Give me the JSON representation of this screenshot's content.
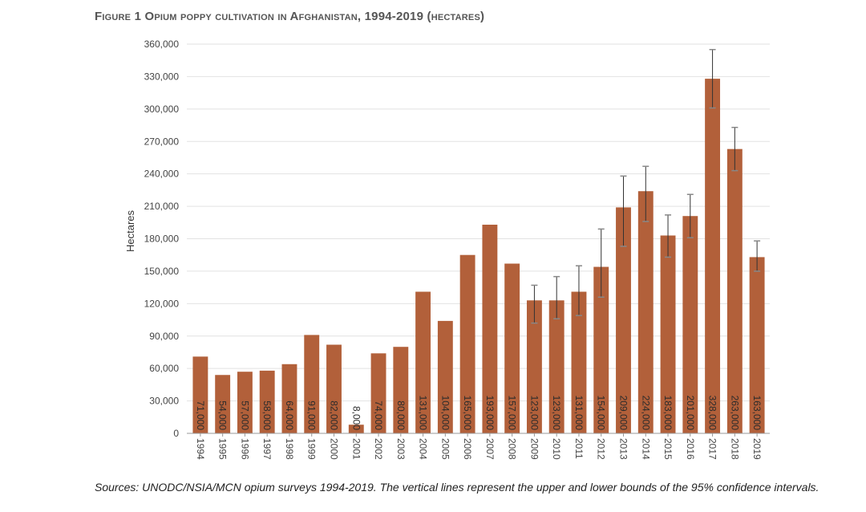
{
  "figure": {
    "title": "Figure 1 Opium poppy cultivation in Afghanistan, 1994-2019 (hectares)",
    "source": "Sources: UNODC/NSIA/MCN opium surveys 1994-2019. The vertical lines represent the upper and lower bounds of the 95% confidence intervals."
  },
  "colors": {
    "bar": "#b2603a",
    "bar_label": "#2b2b2b",
    "grid": "#e2e2e2",
    "error_bar": "#333333",
    "axis_text": "#444444"
  },
  "chart_data": {
    "type": "bar",
    "title": "Figure 1 Opium poppy cultivation in Afghanistan, 1994-2019 (hectares)",
    "xlabel": "",
    "ylabel": "Hectares",
    "ylim": [
      0,
      360000
    ],
    "yticks": [
      0,
      30000,
      60000,
      90000,
      120000,
      150000,
      180000,
      210000,
      240000,
      270000,
      300000,
      330000,
      360000
    ],
    "ytick_labels": [
      "0",
      "30,000",
      "60,000",
      "90,000",
      "120,000",
      "150,000",
      "180,000",
      "210,000",
      "240,000",
      "270,000",
      "300,000",
      "330,000",
      "360,000"
    ],
    "grid": true,
    "categories": [
      "1994",
      "1995",
      "1996",
      "1997",
      "1998",
      "1999",
      "2000",
      "2001",
      "2002",
      "2003",
      "2004",
      "2005",
      "2006",
      "2007",
      "2008",
      "2009",
      "2010",
      "2011",
      "2012",
      "2013",
      "2014",
      "2015",
      "2016",
      "2017",
      "2018",
      "2019"
    ],
    "values": [
      71000,
      54000,
      57000,
      58000,
      64000,
      91000,
      82000,
      8000,
      74000,
      80000,
      131000,
      104000,
      165000,
      193000,
      157000,
      123000,
      123000,
      131000,
      154000,
      209000,
      224000,
      183000,
      201000,
      328000,
      263000,
      163000
    ],
    "value_labels": [
      "71,000",
      "54,000",
      "57,000",
      "58,000",
      "64,000",
      "91,000",
      "82,000",
      "8,000",
      "74,000",
      "80,000",
      "131,000",
      "104,000",
      "165,000",
      "193,000",
      "157,000",
      "123,000",
      "123,000",
      "131,000",
      "154,000",
      "209,000",
      "224,000",
      "183,000",
      "201,000",
      "328,000",
      "263,000",
      "163,000"
    ],
    "error_bars": [
      null,
      null,
      null,
      null,
      null,
      null,
      null,
      null,
      null,
      null,
      null,
      null,
      null,
      null,
      null,
      {
        "low": 102000,
        "high": 137000
      },
      {
        "low": 106000,
        "high": 145000
      },
      {
        "low": 109000,
        "high": 155000
      },
      {
        "low": 126000,
        "high": 189000
      },
      {
        "low": 173000,
        "high": 238000
      },
      {
        "low": 196000,
        "high": 247000
      },
      {
        "low": 163000,
        "high": 202000
      },
      {
        "low": 181000,
        "high": 221000
      },
      {
        "low": 301000,
        "high": 355000
      },
      {
        "low": 243000,
        "high": 283000
      },
      {
        "low": 150000,
        "high": 178000
      }
    ]
  }
}
